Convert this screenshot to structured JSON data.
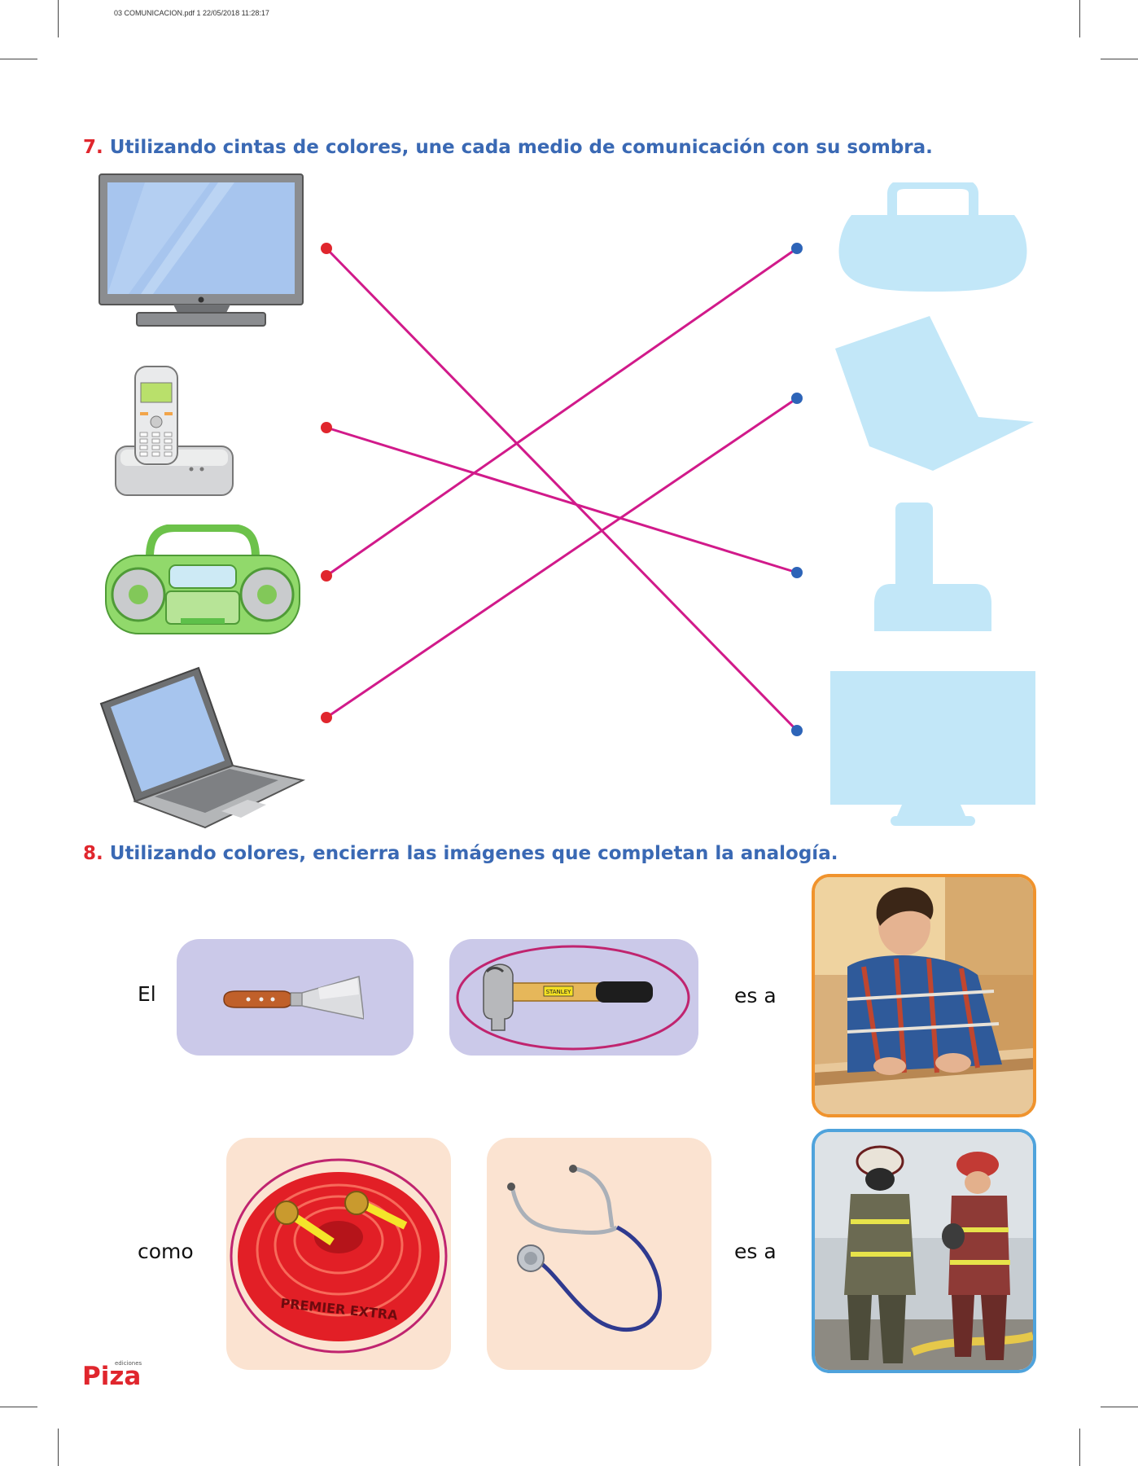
{
  "header": {
    "file_meta": "03 COMUNICACION.pdf   1   22/05/2018   11:28:17"
  },
  "question7": {
    "number": "7.",
    "text": "Utilizando cintas de colores, une cada medio de comunicación con su sombra.",
    "items_left": [
      "television",
      "telefono-inalambrico",
      "radio-grabadora",
      "laptop"
    ],
    "shadows_right": [
      "radio-grabadora",
      "laptop",
      "telefono-inalambrico",
      "television"
    ],
    "connections": [
      {
        "from": "television",
        "to": "television"
      },
      {
        "from": "telefono-inalambrico",
        "to": "telefono-inalambrico"
      },
      {
        "from": "radio-grabadora",
        "to": "radio-grabadora"
      },
      {
        "from": "laptop",
        "to": "laptop"
      }
    ],
    "colors": {
      "line": "#d11a8a",
      "left_dot": "#e0262d",
      "right_dot": "#2d64b8",
      "shadow": "#c2e7f8"
    }
  },
  "question8": {
    "number": "8.",
    "text": "Utilizando colores, encierra las imágenes que completan la analogía.",
    "row1": {
      "lead_word": "El",
      "options": [
        "espatula",
        "martillo"
      ],
      "circled": "martillo",
      "connector": "es a",
      "photo": "carpintero"
    },
    "row2": {
      "lead_word": "como",
      "options": [
        "manguera",
        "estetoscopio"
      ],
      "circled": "manguera",
      "connector": "es a",
      "photo": "bomberos"
    },
    "hammer_label": "STANLEY",
    "hose_text": "PREMIER EXTRA",
    "colors": {
      "circle": "#c0246f",
      "photo1_border": "#f0932d",
      "photo2_border": "#4fa3dc"
    }
  },
  "publisher": {
    "name": "Piza",
    "tag": "ediciones",
    "color": "#e0262d"
  }
}
